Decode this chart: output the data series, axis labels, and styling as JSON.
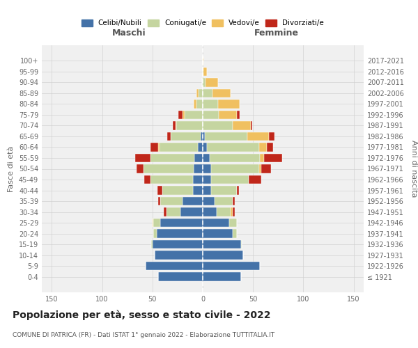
{
  "age_groups": [
    "100+",
    "95-99",
    "90-94",
    "85-89",
    "80-84",
    "75-79",
    "70-74",
    "65-69",
    "60-64",
    "55-59",
    "50-54",
    "45-49",
    "40-44",
    "35-39",
    "30-34",
    "25-29",
    "20-24",
    "15-19",
    "10-14",
    "5-9",
    "0-4"
  ],
  "birth_years": [
    "≤ 1921",
    "1922-1926",
    "1927-1931",
    "1932-1936",
    "1937-1941",
    "1942-1946",
    "1947-1951",
    "1952-1956",
    "1957-1961",
    "1962-1966",
    "1967-1971",
    "1972-1976",
    "1977-1981",
    "1982-1986",
    "1987-1991",
    "1992-1996",
    "1997-2001",
    "2002-2006",
    "2007-2011",
    "2012-2016",
    "2017-2021"
  ],
  "maschi_celibi": [
    0,
    0,
    0,
    0,
    0,
    0,
    0,
    2,
    5,
    8,
    9,
    10,
    10,
    20,
    22,
    42,
    46,
    50,
    48,
    57,
    44
  ],
  "maschi_coniugati": [
    0,
    0,
    1,
    4,
    6,
    18,
    26,
    30,
    38,
    44,
    50,
    42,
    30,
    22,
    14,
    7,
    3,
    1,
    0,
    0,
    0
  ],
  "maschi_vedovi": [
    0,
    0,
    0,
    2,
    3,
    2,
    1,
    0,
    1,
    0,
    0,
    0,
    0,
    0,
    0,
    1,
    0,
    0,
    0,
    0,
    0
  ],
  "maschi_divorziati": [
    0,
    0,
    0,
    0,
    0,
    4,
    3,
    3,
    8,
    15,
    7,
    6,
    5,
    2,
    3,
    0,
    0,
    0,
    0,
    0,
    0
  ],
  "femmine_celibi": [
    0,
    0,
    0,
    0,
    0,
    0,
    0,
    2,
    4,
    7,
    8,
    8,
    8,
    12,
    14,
    26,
    30,
    38,
    40,
    57,
    38
  ],
  "femmine_coniugati": [
    0,
    1,
    3,
    10,
    15,
    16,
    30,
    42,
    52,
    50,
    48,
    38,
    26,
    18,
    14,
    8,
    4,
    1,
    0,
    0,
    0
  ],
  "femmine_vedovi": [
    1,
    3,
    12,
    18,
    22,
    18,
    18,
    22,
    8,
    4,
    2,
    0,
    0,
    0,
    2,
    0,
    0,
    0,
    0,
    0,
    0
  ],
  "femmine_divorziati": [
    0,
    0,
    0,
    0,
    0,
    3,
    1,
    5,
    6,
    18,
    10,
    12,
    2,
    2,
    2,
    0,
    0,
    0,
    0,
    0,
    0
  ],
  "colors": {
    "celibi": "#4472a8",
    "coniugati": "#c5d5a0",
    "vedovi": "#f0c060",
    "divorziati": "#c0271a"
  },
  "title": "Popolazione per età, sesso e stato civile - 2022",
  "subtitle": "COMUNE DI PATRICA (FR) - Dati ISTAT 1° gennaio 2022 - Elaborazione TUTTITALIA.IT",
  "header_maschi": "Maschi",
  "header_femmine": "Femmine",
  "ylabel_left": "Fasce di età",
  "ylabel_right": "Anni di nascita",
  "legend_labels": [
    "Celibi/Nubili",
    "Coniugati/e",
    "Vedovi/e",
    "Divorziati/e"
  ],
  "xlim": 160,
  "background_color": "#ffffff",
  "plot_bg_color": "#f0f0f0",
  "grid_color": "#cccccc"
}
